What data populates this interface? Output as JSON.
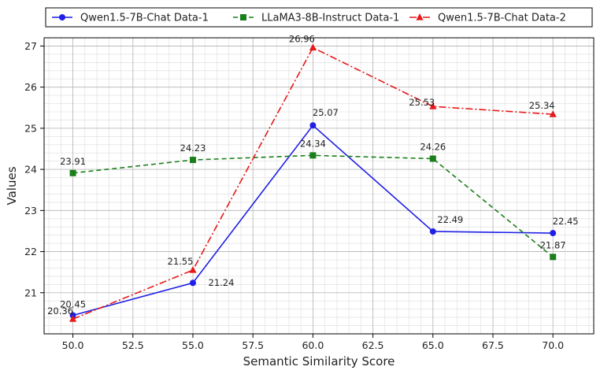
{
  "chart_data": {
    "type": "line",
    "xlabel": "Semantic Similarity Score",
    "ylabel": "Values",
    "xlim": [
      48.8,
      71.7
    ],
    "ylim": [
      20.0,
      27.2
    ],
    "x_ticks": [
      "50.0",
      "52.5",
      "55.0",
      "57.5",
      "60.0",
      "62.5",
      "65.0",
      "67.5",
      "70.0"
    ],
    "y_ticks": [
      "21",
      "22",
      "23",
      "24",
      "25",
      "26",
      "27"
    ],
    "grid": true,
    "minor_grid": true,
    "legend_placement": "top",
    "x": [
      50,
      55,
      60,
      65,
      70
    ],
    "series": [
      {
        "name": "Qwen1.5-7B-Chat Data-1",
        "values": [
          20.45,
          21.24,
          25.07,
          22.49,
          22.45
        ],
        "labels": [
          "20.45",
          "21.24",
          "25.07",
          "22.49",
          "22.45"
        ],
        "color": "#1f1fe6",
        "marker": "circle",
        "line_style": "solid"
      },
      {
        "name": "LLaMA3-8B-Instruct Data-1",
        "values": [
          23.91,
          24.23,
          24.34,
          24.26,
          21.87
        ],
        "labels": [
          "23.91",
          "24.23",
          "24.34",
          "24.26",
          "21.87"
        ],
        "color": "#1a7f1a",
        "marker": "square",
        "line_style": "dashed"
      },
      {
        "name": "Qwen1.5-7B-Chat Data-2",
        "values": [
          20.36,
          21.55,
          26.96,
          25.53,
          25.34
        ],
        "labels": [
          "20.36",
          "21.55",
          "26.96",
          "25.53",
          "25.34"
        ],
        "color": "#e61919",
        "marker": "triangle",
        "line_style": "dashdot"
      }
    ]
  }
}
